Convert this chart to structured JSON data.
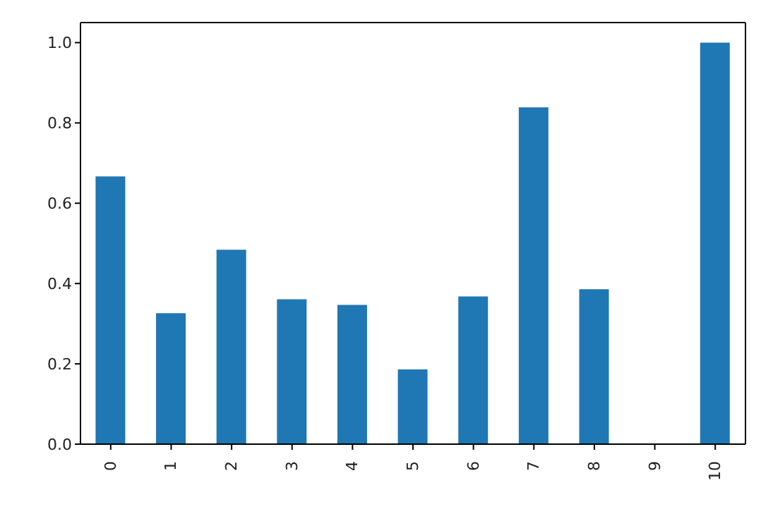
{
  "chart_data": {
    "type": "bar",
    "categories": [
      "0",
      "1",
      "2",
      "3",
      "4",
      "5",
      "6",
      "7",
      "8",
      "9",
      "10"
    ],
    "values": [
      0.667,
      0.326,
      0.484,
      0.361,
      0.347,
      0.186,
      0.368,
      0.839,
      0.386,
      0,
      1.0
    ],
    "color": "#1f77b4",
    "ylim": [
      0,
      1.05
    ],
    "yticks": [
      {
        "value": 0,
        "label": "0.0"
      },
      {
        "value": 0.2,
        "label": "0.2"
      },
      {
        "value": 0.4,
        "label": "0.4"
      },
      {
        "value": 0.6,
        "label": "0.6"
      },
      {
        "value": 0.8,
        "label": "0.8"
      },
      {
        "value": 1,
        "label": "1.0"
      }
    ],
    "grid": false,
    "legend": false
  }
}
